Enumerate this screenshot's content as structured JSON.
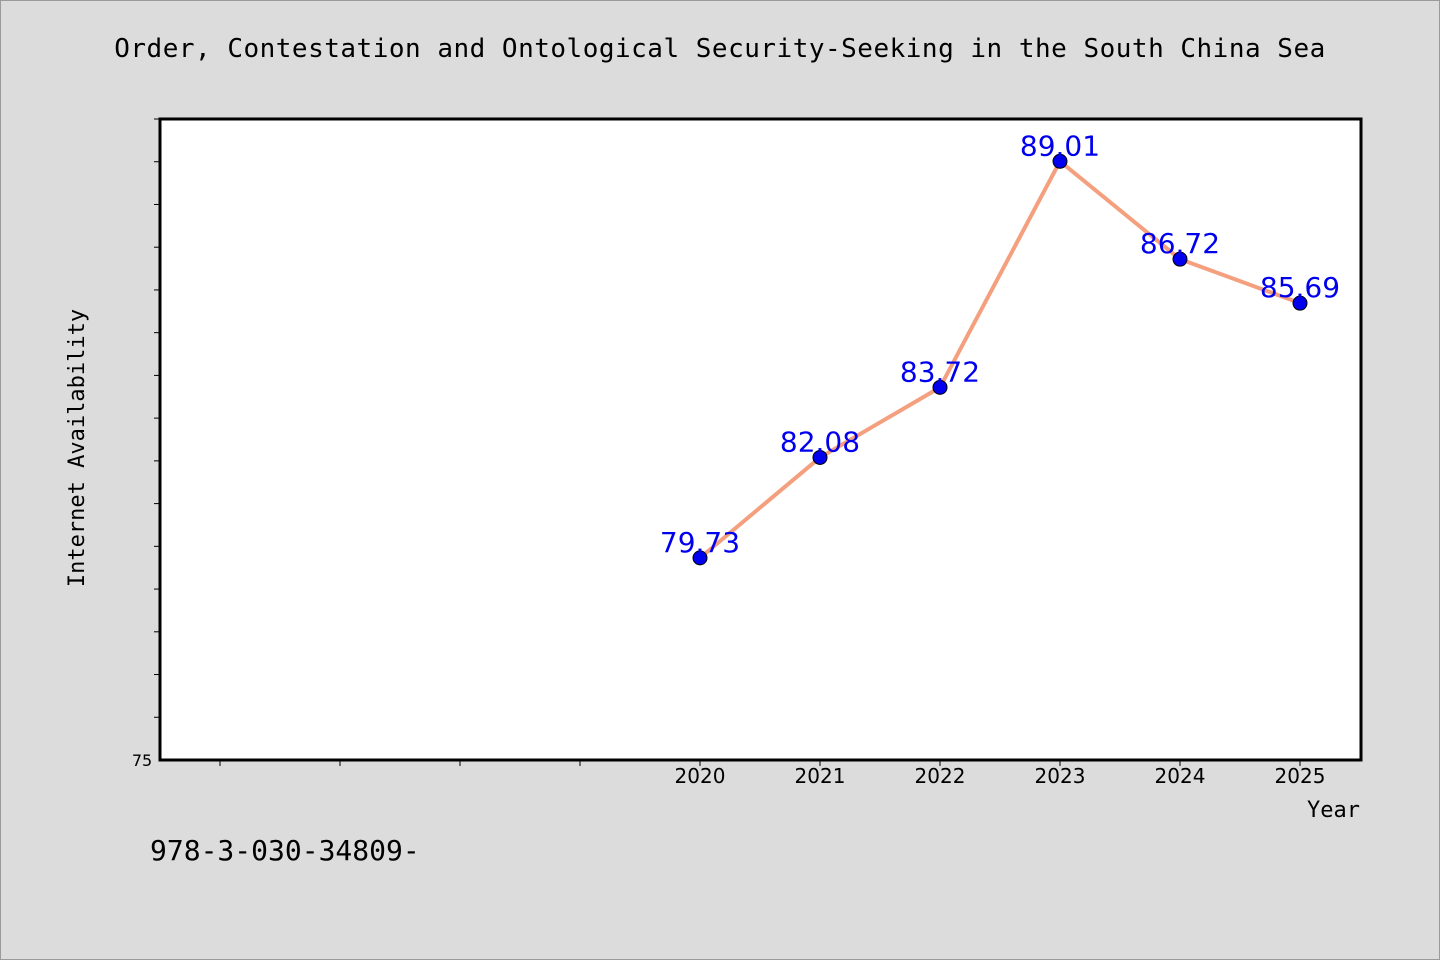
{
  "chart_data": {
    "type": "line",
    "title": "Order, Contestation and Ontological Security-Seeking in the South China Sea",
    "xlabel": "Year",
    "ylabel": "Internet Availability",
    "categories": [
      "2020",
      "2021",
      "2022",
      "2023",
      "2024",
      "2025"
    ],
    "x_slots_before_data": 4,
    "series": [
      {
        "values": [
          79.73,
          82.08,
          83.72,
          89.01,
          86.72,
          85.69
        ],
        "labels": [
          "79.73",
          "82.08",
          "83.72",
          "89.01",
          "86.72",
          "85.69"
        ],
        "line_color": "#f4a07e",
        "marker_color": "#0000ee"
      }
    ],
    "ylim": [
      75,
      90
    ],
    "y_tick_label": "75",
    "y_minor_tick_step": 1,
    "grid": false,
    "legend": "none",
    "label_color": "#0000ee"
  },
  "footer_note": "978-3-030-34809-"
}
